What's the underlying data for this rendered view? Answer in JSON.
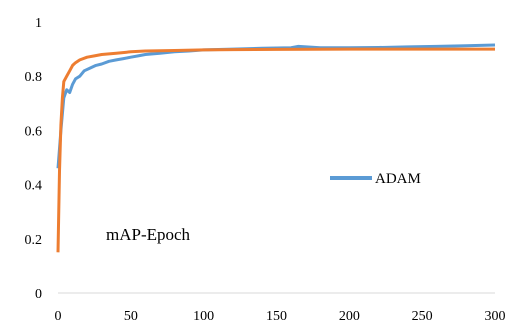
{
  "chart_data": {
    "type": "line",
    "annotation": "mAP-Epoch",
    "xlabel": "",
    "ylabel": "",
    "xlim": [
      0,
      300
    ],
    "ylim": [
      0,
      1
    ],
    "x_ticks": [
      0,
      50,
      100,
      150,
      200,
      250,
      300
    ],
    "y_ticks": [
      0,
      0.2,
      0.4,
      0.6,
      0.8,
      1
    ],
    "y_tick_labels": [
      "0",
      "0.2",
      "0.4",
      "0.6",
      "0.8",
      "1"
    ],
    "grid": false,
    "legend_placement": "center-right",
    "legend": [
      "ADAM"
    ],
    "series": [
      {
        "name": "ADAM",
        "color": "#5b9bd5",
        "points": [
          [
            0,
            0.46
          ],
          [
            2,
            0.6
          ],
          [
            4,
            0.72
          ],
          [
            6,
            0.75
          ],
          [
            8,
            0.74
          ],
          [
            10,
            0.77
          ],
          [
            12,
            0.79
          ],
          [
            15,
            0.8
          ],
          [
            18,
            0.82
          ],
          [
            22,
            0.83
          ],
          [
            26,
            0.84
          ],
          [
            30,
            0.845
          ],
          [
            35,
            0.855
          ],
          [
            40,
            0.86
          ],
          [
            45,
            0.865
          ],
          [
            50,
            0.87
          ],
          [
            55,
            0.875
          ],
          [
            60,
            0.88
          ],
          [
            70,
            0.885
          ],
          [
            80,
            0.89
          ],
          [
            90,
            0.893
          ],
          [
            100,
            0.897
          ],
          [
            120,
            0.9
          ],
          [
            140,
            0.903
          ],
          [
            160,
            0.905
          ],
          [
            165,
            0.91
          ],
          [
            180,
            0.905
          ],
          [
            200,
            0.905
          ],
          [
            220,
            0.906
          ],
          [
            240,
            0.908
          ],
          [
            260,
            0.91
          ],
          [
            280,
            0.912
          ],
          [
            300,
            0.915
          ]
        ]
      },
      {
        "color": "#ed7d31",
        "points": [
          [
            0,
            0.15
          ],
          [
            1,
            0.45
          ],
          [
            2,
            0.62
          ],
          [
            3,
            0.72
          ],
          [
            4,
            0.78
          ],
          [
            6,
            0.8
          ],
          [
            8,
            0.82
          ],
          [
            10,
            0.84
          ],
          [
            12,
            0.85
          ],
          [
            15,
            0.86
          ],
          [
            20,
            0.87
          ],
          [
            25,
            0.875
          ],
          [
            30,
            0.88
          ],
          [
            40,
            0.885
          ],
          [
            50,
            0.89
          ],
          [
            60,
            0.893
          ],
          [
            80,
            0.895
          ],
          [
            100,
            0.897
          ],
          [
            120,
            0.898
          ],
          [
            150,
            0.899
          ],
          [
            200,
            0.9
          ],
          [
            250,
            0.9
          ],
          [
            300,
            0.9
          ]
        ]
      }
    ]
  }
}
